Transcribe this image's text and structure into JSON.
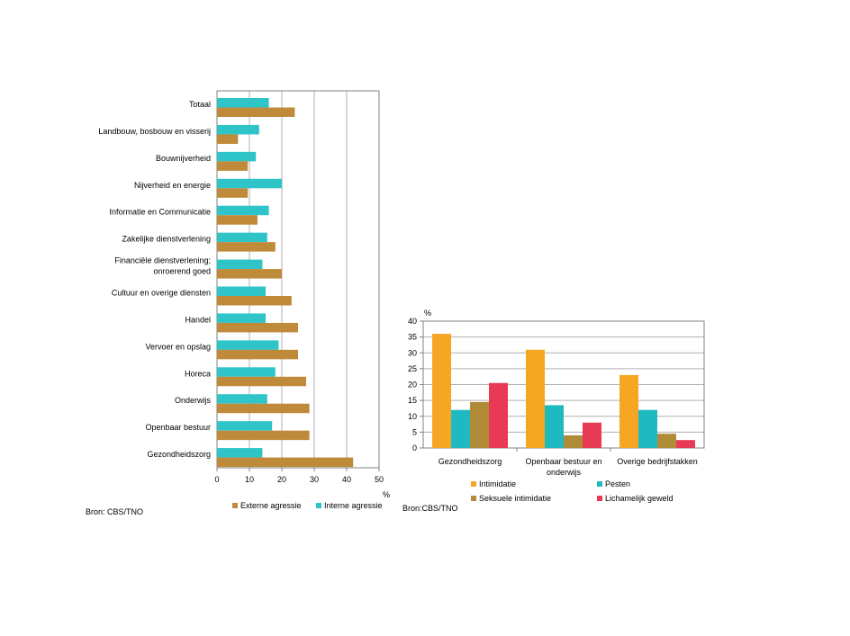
{
  "colors": {
    "externe": "#bf8a3a",
    "interne": "#2ec4c8",
    "intimidatie": "#f5a623",
    "pesten": "#1fb9c1",
    "seksuele": "#b08c38",
    "lichamelijk": "#e83a55"
  },
  "chart_data": [
    {
      "type": "bar",
      "orientation": "horizontal",
      "categories": [
        "Totaal",
        "Landbouw, bosbouw en visserij",
        "Bouwnijverheid",
        "Nijverheid en energie",
        "Informatie en Communicatie",
        "Zakelijke dienstverlening",
        "Financiële dienstverlening; onroerend goed",
        "Cultuur en overige diensten",
        "Handel",
        "Vervoer en opslag",
        "Horeca",
        "Onderwijs",
        "Openbaar bestuur",
        "Gezondheidszorg"
      ],
      "series": [
        {
          "name": "Externe agressie",
          "values": [
            24,
            6.5,
            9.5,
            9.5,
            12.5,
            18,
            20,
            23,
            25,
            25,
            27.5,
            28.5,
            28.5,
            42
          ]
        },
        {
          "name": "Interne agressie",
          "values": [
            16,
            13,
            12,
            20,
            16,
            15.5,
            14,
            15,
            15,
            19,
            18,
            15.5,
            17,
            14
          ]
        }
      ],
      "xlim": [
        0,
        50
      ],
      "xticks": [
        0,
        10,
        20,
        30,
        40,
        50
      ],
      "xlabel": "%",
      "grid": true,
      "legend": "bottom",
      "source": "Bron: CBS/TNO"
    },
    {
      "type": "bar",
      "orientation": "vertical",
      "categories": [
        "Gezondheidszorg",
        "Openbaar bestuur en onderwijs",
        "Overige bedrijfstakken"
      ],
      "series": [
        {
          "name": "Intimidatie",
          "values": [
            36,
            31,
            23
          ]
        },
        {
          "name": "Pesten",
          "values": [
            12,
            13.5,
            12
          ]
        },
        {
          "name": "Seksuele intimidatie",
          "values": [
            14.5,
            4,
            4.5
          ]
        },
        {
          "name": "Lichamelijk geweld",
          "values": [
            20.5,
            8,
            2.5
          ]
        }
      ],
      "ylim": [
        0,
        40
      ],
      "yticks": [
        0,
        5,
        10,
        15,
        20,
        25,
        30,
        35,
        40
      ],
      "ylabel": "%",
      "grid": true,
      "legend": "bottom",
      "source": "Bron:CBS/TNO"
    }
  ]
}
